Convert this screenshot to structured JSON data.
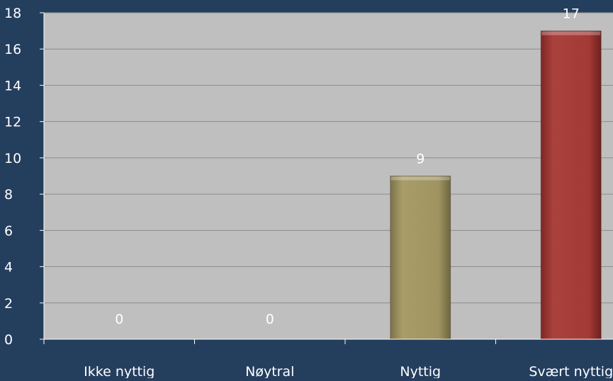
{
  "chart_data": {
    "type": "bar",
    "categories": [
      "Ikke nyttig",
      "Nøytral",
      "Nyttig",
      "Svært nyttig"
    ],
    "values": [
      0,
      0,
      9,
      17
    ],
    "data_labels": [
      "0",
      "0",
      "9",
      "17"
    ],
    "y_ticks": [
      "0",
      "2",
      "4",
      "6",
      "8",
      "10",
      "12",
      "14",
      "16",
      "18"
    ],
    "ylim": [
      0,
      18
    ],
    "grid": true,
    "bar_colors": [
      "#9e9260",
      "#9e9260",
      "#9e9260",
      "#a23a36"
    ],
    "plot_background": "#bfbfbf",
    "page_background": "#243e5e",
    "label_color": "#ffffff"
  }
}
